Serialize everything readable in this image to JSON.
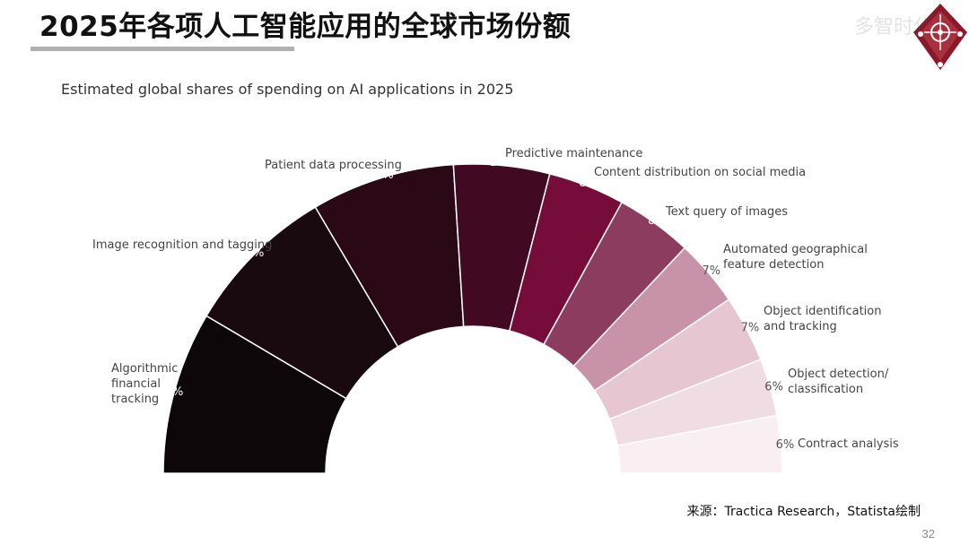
{
  "slide": {
    "title": "2025年各项人工智能应用的全球市场份额",
    "watermark": "多智时代",
    "source": "来源：Tractica Research，Statista绘制",
    "page_number": "32"
  },
  "colors": {
    "accent": "#8a1a3a",
    "rule": "#b0b0b0"
  },
  "icons": {
    "logo": "maroon-diamond-logo"
  },
  "chart_data": {
    "type": "pie",
    "variant": "half-donut",
    "title": "Estimated global shares of spending on AI applications in 2025",
    "legend": "none",
    "slices": [
      {
        "label": "Algorithmic financial tracking",
        "lines": [
          "Algorithmic",
          "financial",
          "tracking"
        ],
        "value": 17,
        "value_label": "17%",
        "color": "#0d0709"
      },
      {
        "label": "Image recognition and tagging",
        "lines": [
          "Image recognition and tagging"
        ],
        "value": 16,
        "value_label": "16%",
        "color": "#180a0f"
      },
      {
        "label": "Patient data processing",
        "lines": [
          "Patient data processing"
        ],
        "value": 15,
        "value_label": "15%",
        "color": "#2a0816"
      },
      {
        "label": "Predictive maintenance",
        "lines": [
          "Predictive maintenance"
        ],
        "value": 10,
        "value_label": "10%",
        "color": "#420a22"
      },
      {
        "label": "Content distribution on social media",
        "lines": [
          "Content distribution on social media"
        ],
        "value": 8,
        "value_label": "8%",
        "color": "#760c3a"
      },
      {
        "label": "Text query of images",
        "lines": [
          "Text query of images"
        ],
        "value": 8,
        "value_label": "8%",
        "color": "#8c3c5e"
      },
      {
        "label": "Automated geographical feature detection",
        "lines": [
          "Automated geographical",
          "feature detection"
        ],
        "value": 7,
        "value_label": "7%",
        "color": "#c893a8"
      },
      {
        "label": "Object identification and tracking",
        "lines": [
          "Object identification",
          "and tracking"
        ],
        "value": 7,
        "value_label": "7%",
        "color": "#e5c6d1"
      },
      {
        "label": "Object detection/ classification",
        "lines": [
          "Object detection/",
          "classification"
        ],
        "value": 6,
        "value_label": "6%",
        "color": "#f0dde4"
      },
      {
        "label": "Contract analysis",
        "lines": [
          "Contract analysis"
        ],
        "value": 6,
        "value_label": "6%",
        "color": "#f9eef2"
      }
    ]
  }
}
